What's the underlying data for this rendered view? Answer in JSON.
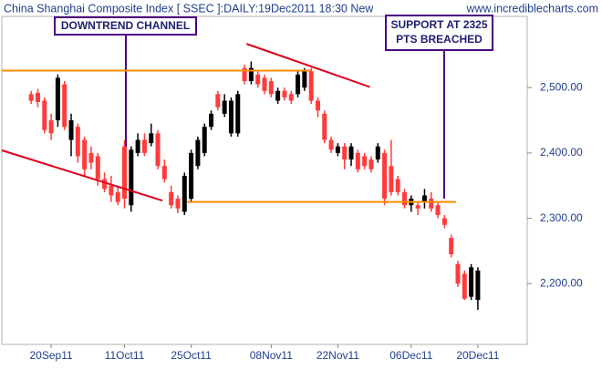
{
  "chart_data": {
    "type": "candlestick",
    "title": "China Shanghai Composite Index [ SSEC ]:DAILY:19Dec2011 18:30 New",
    "source": "www.incrediblecharts.com",
    "up_color": "#000000",
    "down_color": "#ff3b3b",
    "ylim": [
      2107,
      2609
    ],
    "xlim": [
      -4.4,
      74.4
    ],
    "yticks": [
      {
        "value": 2500,
        "label": "2,500.00"
      },
      {
        "value": 2400,
        "label": "2,400.00"
      },
      {
        "value": 2300,
        "label": "2,300.00"
      },
      {
        "value": 2200,
        "label": "2,200.00"
      }
    ],
    "xticks": [
      {
        "value": 3,
        "label": "20Sep11"
      },
      {
        "value": 14,
        "label": "11Oct11"
      },
      {
        "value": 24,
        "label": "25Oct11"
      },
      {
        "value": 36,
        "label": "08Nov11"
      },
      {
        "value": 46,
        "label": "22Nov11"
      },
      {
        "value": 57,
        "label": "06Dec11"
      },
      {
        "value": 67,
        "label": "20Dec11"
      }
    ],
    "ohlc": [
      [
        2490,
        2495,
        2475,
        2480
      ],
      [
        2492,
        2498,
        2470,
        2478
      ],
      [
        2480,
        2485,
        2430,
        2435
      ],
      [
        2450,
        2460,
        2420,
        2430
      ],
      [
        2450,
        2520,
        2440,
        2515
      ],
      [
        2505,
        2510,
        2435,
        2440
      ],
      [
        2420,
        2460,
        2395,
        2450
      ],
      [
        2440,
        2445,
        2385,
        2395
      ],
      [
        2420,
        2425,
        2365,
        2375
      ],
      [
        2400,
        2410,
        2375,
        2385
      ],
      [
        2395,
        2400,
        2350,
        2360
      ],
      [
        2360,
        2370,
        2340,
        2345
      ],
      [
        2350,
        2365,
        2325,
        2335
      ],
      [
        2340,
        2350,
        2320,
        2325
      ],
      [
        2410,
        2420,
        2315,
        2330
      ],
      [
        2320,
        2410,
        2310,
        2405
      ],
      [
        2400,
        2430,
        2395,
        2420
      ],
      [
        2420,
        2430,
        2395,
        2400
      ],
      [
        2415,
        2445,
        2410,
        2430
      ],
      [
        2430,
        2435,
        2375,
        2380
      ],
      [
        2380,
        2390,
        2355,
        2360
      ],
      [
        2340,
        2350,
        2315,
        2320
      ],
      [
        2330,
        2335,
        2308,
        2315
      ],
      [
        2310,
        2370,
        2305,
        2365
      ],
      [
        2330,
        2405,
        2325,
        2400
      ],
      [
        2380,
        2425,
        2375,
        2420
      ],
      [
        2400,
        2445,
        2395,
        2440
      ],
      [
        2440,
        2465,
        2435,
        2460
      ],
      [
        2490,
        2495,
        2465,
        2470
      ],
      [
        2460,
        2490,
        2455,
        2480
      ],
      [
        2430,
        2485,
        2425,
        2480
      ],
      [
        2430,
        2495,
        2425,
        2490
      ],
      [
        2530,
        2535,
        2505,
        2510
      ],
      [
        2510,
        2540,
        2505,
        2530
      ],
      [
        2520,
        2525,
        2500,
        2505
      ],
      [
        2515,
        2520,
        2490,
        2495
      ],
      [
        2510,
        2515,
        2485,
        2490
      ],
      [
        2480,
        2500,
        2475,
        2495
      ],
      [
        2495,
        2500,
        2480,
        2485
      ],
      [
        2490,
        2495,
        2475,
        2480
      ],
      [
        2490,
        2525,
        2485,
        2520
      ],
      [
        2500,
        2530,
        2495,
        2525
      ],
      [
        2525,
        2530,
        2475,
        2480
      ],
      [
        2480,
        2485,
        2455,
        2465
      ],
      [
        2460,
        2465,
        2415,
        2420
      ],
      [
        2420,
        2425,
        2400,
        2405
      ],
      [
        2400,
        2415,
        2395,
        2410
      ],
      [
        2410,
        2415,
        2375,
        2390
      ],
      [
        2390,
        2415,
        2380,
        2410
      ],
      [
        2400,
        2405,
        2370,
        2375
      ],
      [
        2395,
        2400,
        2375,
        2380
      ],
      [
        2390,
        2395,
        2370,
        2375
      ],
      [
        2390,
        2415,
        2385,
        2410
      ],
      [
        2400,
        2405,
        2320,
        2330
      ],
      [
        2380,
        2420,
        2335,
        2340
      ],
      [
        2360,
        2365,
        2335,
        2340
      ],
      [
        2340,
        2345,
        2315,
        2320
      ],
      [
        2320,
        2335,
        2310,
        2330
      ],
      [
        2320,
        2325,
        2305,
        2315
      ],
      [
        2325,
        2345,
        2315,
        2335
      ],
      [
        2330,
        2340,
        2310,
        2315
      ],
      [
        2320,
        2325,
        2300,
        2305
      ],
      [
        2300,
        2305,
        2285,
        2290
      ],
      [
        2270,
        2275,
        2240,
        2245
      ],
      [
        2230,
        2235,
        2195,
        2200
      ],
      [
        2215,
        2220,
        2175,
        2177
      ],
      [
        2180,
        2230,
        2175,
        2225
      ],
      [
        2175,
        2225,
        2160,
        2220
      ]
    ],
    "trendlines": [
      {
        "color": "#e0001a",
        "x": [
          32.3,
          50.8
        ],
        "y": [
          2567,
          2501
        ]
      },
      {
        "color": "#e0001a",
        "x": [
          -4.4,
          19.7
        ],
        "y": [
          2404,
          2327
        ]
      },
      {
        "color": "#ff8c00",
        "x": [
          -4.4,
          41.9
        ],
        "y": [
          2526,
          2526
        ]
      },
      {
        "color": "#ff8c00",
        "x": [
          23.4,
          63.7
        ],
        "y": [
          2325,
          2325
        ]
      }
    ],
    "annotations": [
      {
        "lines": [
          "DOWNTREND CHANNEL"
        ]
      },
      {
        "lines": [
          "SUPPORT AT 2325",
          "PTS BREACHED"
        ]
      }
    ]
  }
}
